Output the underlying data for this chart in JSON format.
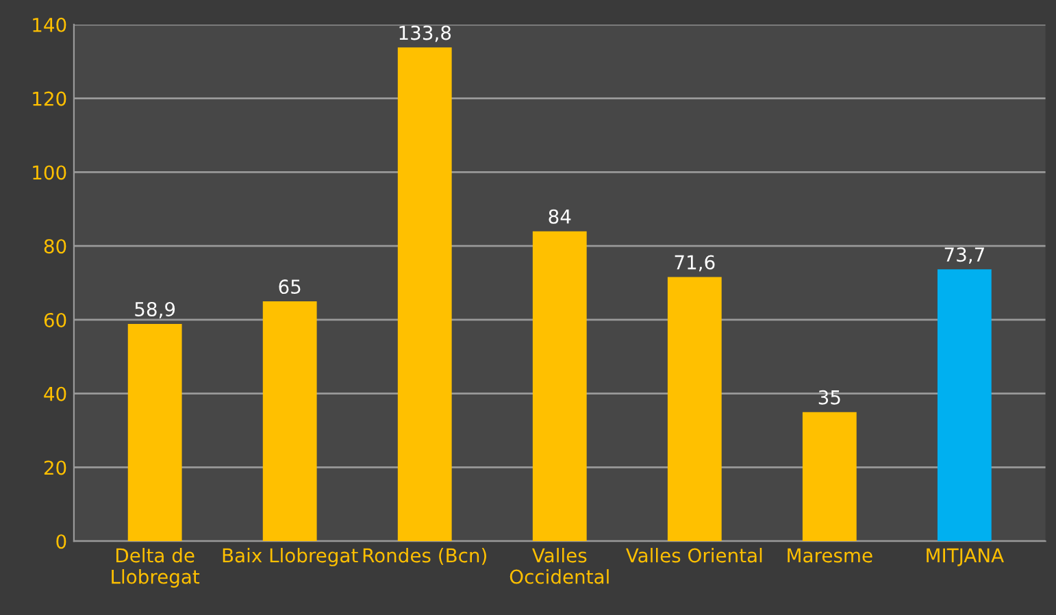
{
  "chart_data": {
    "type": "bar",
    "categories": [
      "Delta de\nLlobregat",
      "Baix Llobregat",
      "Rondes (Bcn)",
      "Valles\nOccidental",
      "Valles Oriental",
      "Maresme",
      "MITJANA"
    ],
    "values": [
      58.9,
      65,
      133.8,
      84,
      71.6,
      35,
      73.7
    ],
    "colors": [
      "#ffc000",
      "#ffc000",
      "#ffc000",
      "#ffc000",
      "#ffc000",
      "#ffc000",
      "#00b0f0"
    ],
    "value_labels": [
      "58,9",
      "65",
      "133,8",
      "84",
      "71,6",
      "35",
      "73,7"
    ],
    "ylim": [
      0,
      140
    ],
    "yticks": [
      0,
      20,
      40,
      60,
      80,
      100,
      120,
      140
    ],
    "grid": "y"
  }
}
